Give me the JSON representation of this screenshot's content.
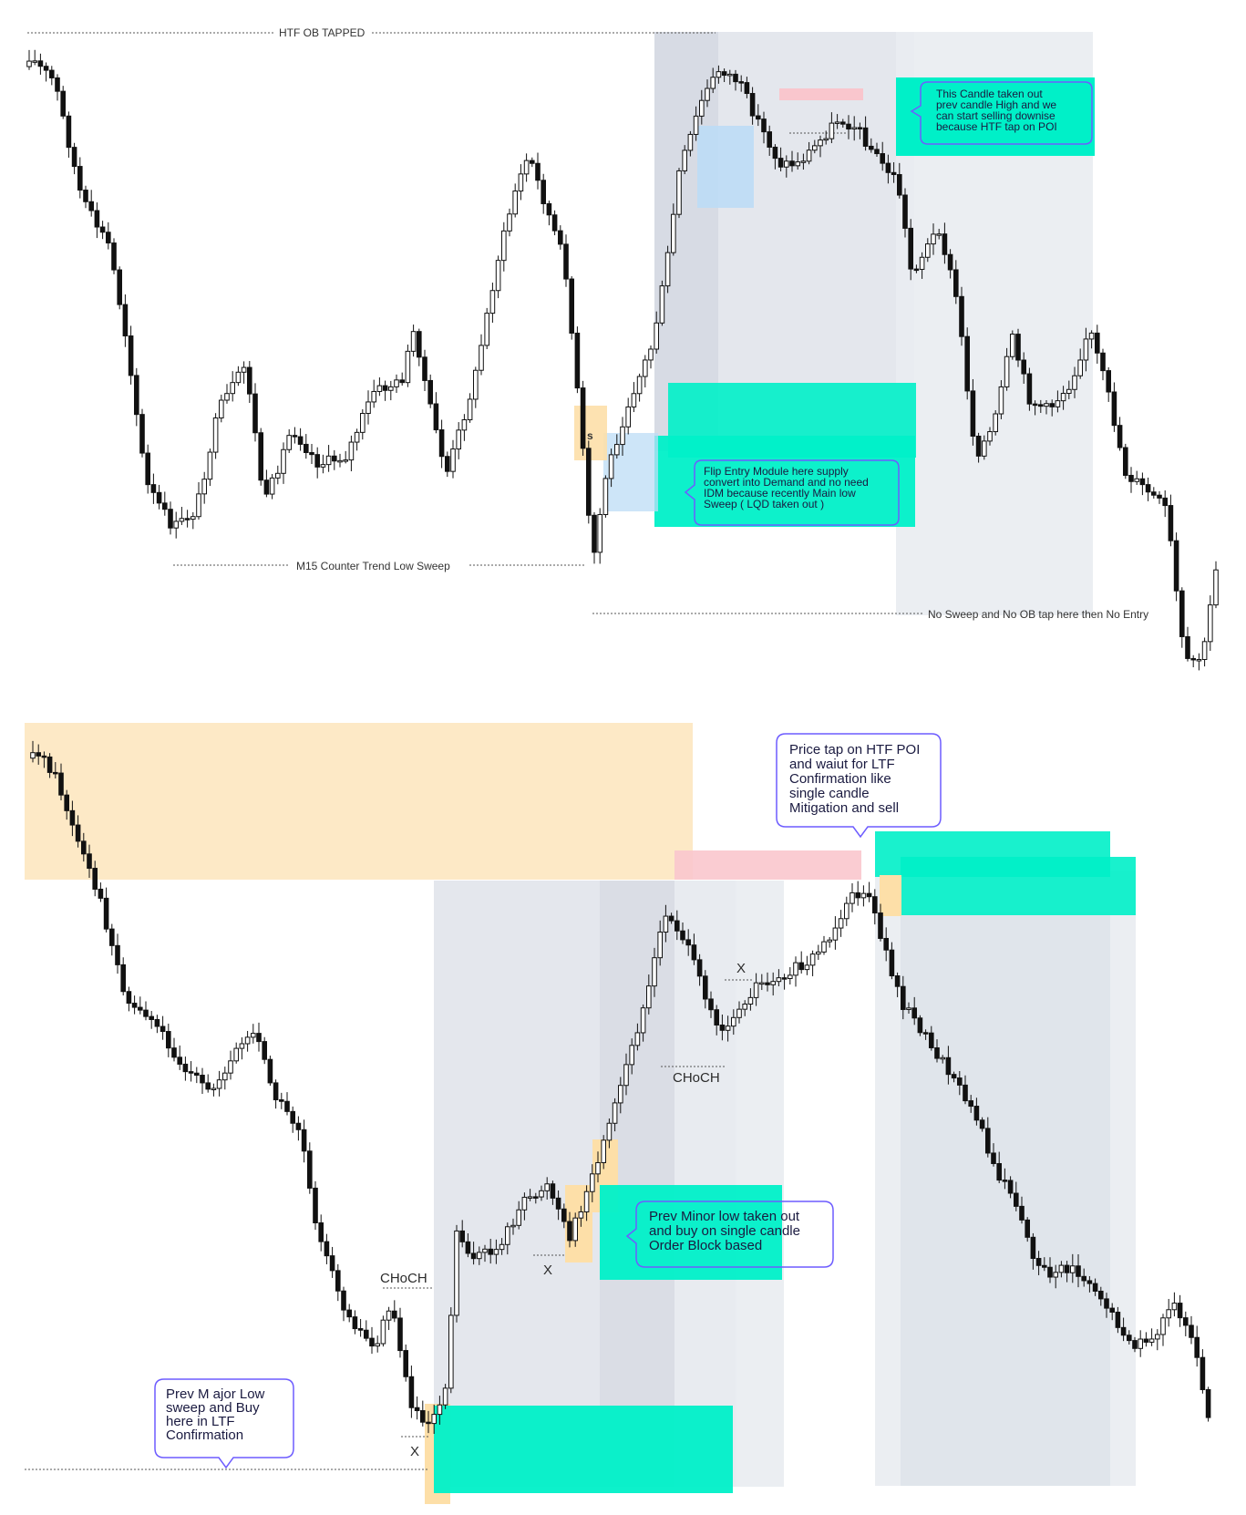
{
  "chart_data": [
    {
      "type": "candlestick",
      "title": "",
      "annotations": {
        "htf_ob": "HTF OB TAPPED",
        "low_sweep": "M15 Counter Trend Low Sweep",
        "no_entry": "No Sweep and No OB tap here then No Entry",
        "s_marker": "s",
        "callout_top": [
          "This Candle taken out",
          "prev candle High and we",
          "can start selling downise",
          "because HTF tap on POI"
        ],
        "callout_flip": [
          "Flip Entry Module here supply",
          "convert into Demand and no need",
          "IDM because recently Main low",
          "Sweep ( LQD taken out )"
        ]
      },
      "colors": {
        "candle": "#111111",
        "supply_zone": "#00f0c8",
        "demand_zone": "#bcdcf5",
        "entry_zone": "#fddfa8",
        "sweep_zone": "#f9c6cd",
        "range_shade": "#dfe3ea",
        "callout_border": "#6d5cff"
      }
    },
    {
      "type": "candlestick",
      "title": "",
      "annotations": {
        "choch_left": "CHoCH",
        "choch_mid": "CHoCH",
        "x_marks": [
          "X",
          "X",
          "X"
        ],
        "callout_poi": [
          "Price tap on HTF POI",
          "and waiut for LTF",
          "Confirmation like",
          "single candle",
          "Mitigation and sell"
        ],
        "callout_minor": [
          "Prev Minor low taken out",
          "and buy on single candle",
          "Order Block based"
        ],
        "callout_major": [
          "Prev M ajor Low",
          "sweep and Buy",
          "here in LTF",
          "Confirmation"
        ]
      },
      "colors": {
        "candle": "#111111",
        "supply_zone": "#00f0c8",
        "htf_zone": "#fde7c0",
        "sweep_zone": "#f9c6cd",
        "range_shade": "#dfe3ea",
        "callout_border": "#6d5cff"
      }
    }
  ]
}
